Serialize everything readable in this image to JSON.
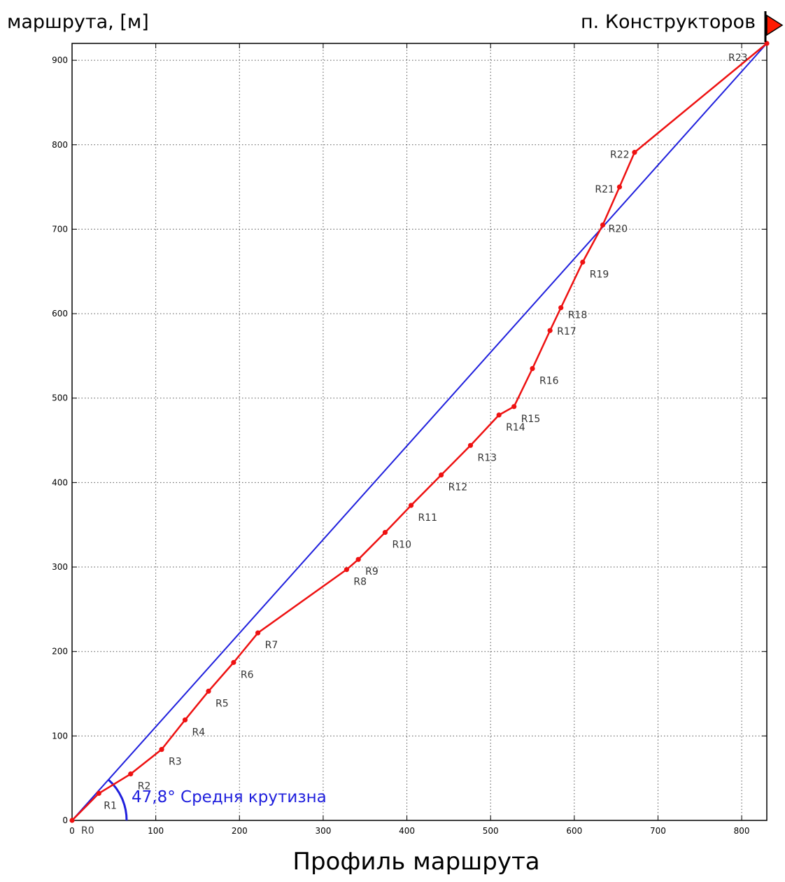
{
  "chart_data": {
    "type": "line",
    "title": "",
    "xlabel": "Профиль маршрута",
    "ylabel": "маршрута, [м]",
    "xlim": [
      0,
      830
    ],
    "ylim": [
      0,
      920
    ],
    "xticks": [
      0,
      100,
      200,
      300,
      400,
      500,
      600,
      700,
      800
    ],
    "yticks": [
      0,
      100,
      200,
      300,
      400,
      500,
      600,
      700,
      800,
      900
    ],
    "grid": true,
    "destination_label": "п. Конструкторов",
    "angle_label": "47,8° Средня крутизна",
    "trend_line": {
      "from": [
        0,
        0
      ],
      "to": [
        830,
        920
      ],
      "color": "#2020dd"
    },
    "series": [
      {
        "color": "#ee1111",
        "points": [
          {
            "label": "R0",
            "x": 0,
            "y": 0
          },
          {
            "label": "R1",
            "x": 32,
            "y": 32
          },
          {
            "label": "R2",
            "x": 70,
            "y": 55
          },
          {
            "label": "R3",
            "x": 107,
            "y": 84
          },
          {
            "label": "R4",
            "x": 135,
            "y": 119
          },
          {
            "label": "R5",
            "x": 163,
            "y": 153
          },
          {
            "label": "R6",
            "x": 193,
            "y": 187
          },
          {
            "label": "R7",
            "x": 222,
            "y": 222
          },
          {
            "label": "R8",
            "x": 328,
            "y": 297
          },
          {
            "label": "R9",
            "x": 342,
            "y": 309
          },
          {
            "label": "R10",
            "x": 374,
            "y": 341
          },
          {
            "label": "R11",
            "x": 405,
            "y": 373
          },
          {
            "label": "R12",
            "x": 441,
            "y": 409
          },
          {
            "label": "R13",
            "x": 476,
            "y": 444
          },
          {
            "label": "R14",
            "x": 510,
            "y": 480
          },
          {
            "label": "R15",
            "x": 528,
            "y": 490
          },
          {
            "label": "R16",
            "x": 550,
            "y": 535
          },
          {
            "label": "R17",
            "x": 571,
            "y": 580
          },
          {
            "label": "R18",
            "x": 584,
            "y": 607
          },
          {
            "label": "R19",
            "x": 610,
            "y": 661
          },
          {
            "label": "R20",
            "x": 634,
            "y": 705
          },
          {
            "label": "R21",
            "x": 654,
            "y": 750
          },
          {
            "label": "R22",
            "x": 672,
            "y": 791
          },
          {
            "label": "R23",
            "x": 830,
            "y": 920
          }
        ]
      }
    ]
  }
}
